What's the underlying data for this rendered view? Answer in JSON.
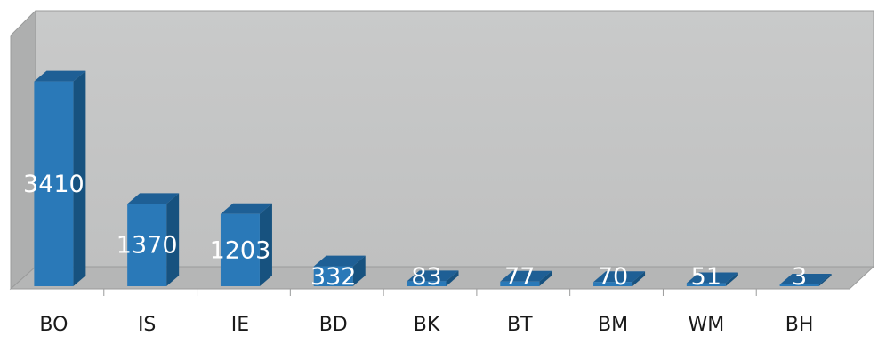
{
  "chart_data": {
    "type": "bar",
    "categories": [
      "BO",
      "IS",
      "IE",
      "BD",
      "BK",
      "BT",
      "BM",
      "WM",
      "BH"
    ],
    "values": [
      3410,
      1370,
      1203,
      332,
      83,
      77,
      70,
      51,
      3
    ],
    "title": "",
    "xlabel": "",
    "ylabel": "",
    "ylim": [
      0,
      3700
    ],
    "grid": false,
    "legend": "none",
    "three_d": true,
    "colors": {
      "bar_front": "#2a79b8",
      "bar_side": "#17527f",
      "bar_top": "#1e5f95",
      "back_wall": "#c5c6c6",
      "side_wall": "#a9aaaa",
      "floor": "#b3b4b4",
      "value_label": "#ffffff",
      "category_label": "#1a1a1a"
    }
  }
}
